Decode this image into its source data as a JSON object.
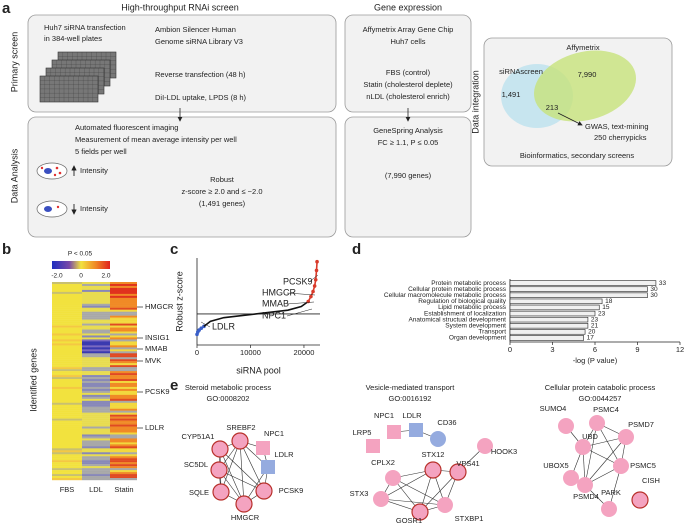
{
  "panel_a": {
    "label": "a",
    "col_titles": [
      "High-throughput RNAi screen",
      "Gene expression"
    ],
    "row_titles": [
      "Primary screen",
      "Data Analysis"
    ],
    "integration_title": "Data  integration",
    "screen": {
      "transfection": [
        "Huh7 siRNA transfection",
        "in 384-well plates"
      ],
      "library": [
        "Ambion Silencer Human",
        "Genome siRNA Library V3"
      ],
      "steps": [
        "Reverse transfection (48 h)",
        "DiI-LDL uptake, LPDS (8 h)"
      ]
    },
    "expression": {
      "chip": [
        "Affymetrix Array Gene Chip",
        "Huh7 cells"
      ],
      "conditions": [
        "FBS (control)",
        "Statin (cholesterol deplete)",
        "nLDL (cholesterol enrich)"
      ]
    },
    "screen_analysis": {
      "imaging": [
        "Automated fluorescent imaging",
        "Measurement of mean average intensity per well",
        "5 fields per well"
      ],
      "intensity": [
        "Intensity",
        "Intensity"
      ],
      "criteria": [
        "Robust",
        "z-score ≥ 2.0  and ≤ −2.0",
        "(1,491 genes)"
      ]
    },
    "expression_analysis": [
      "GeneSpring Analysis",
      "FC ≥ 1.1, P ≤ 0.05",
      "(7,990 genes)"
    ],
    "venn": {
      "sets": [
        "siRNAscreen",
        "Affymetrix"
      ],
      "counts": [
        "1,491",
        "7,990",
        "213"
      ],
      "follow_up": [
        "GWAS, text-mining",
        "250 cherrypicks"
      ],
      "footer": "Bioinformatics, secondary screens"
    }
  },
  "panel_b": {
    "label": "b",
    "colorbar_title": "P < 0.05",
    "colorbar_ticks": [
      "-2.0",
      "0",
      "2.0"
    ],
    "columns": [
      "FBS",
      "LDL",
      "Statin"
    ],
    "genes": [
      "HMGCR",
      "INSIG1",
      "MMAB",
      "MVK",
      "PCSK9",
      "LDLR"
    ],
    "y_label": "Identified genes"
  },
  "panel_c": {
    "label": "c",
    "chart_data": {
      "type": "scatter",
      "x_label": "siRNA pool",
      "y_label": "Robust z-score",
      "xlim": [
        0,
        23000
      ],
      "ylim": [
        -5,
        9
      ],
      "xticks": [
        0,
        10000,
        20000
      ],
      "series": [
        {
          "color": "#3a5fc8",
          "x": [
            0,
            150,
            400,
            800,
            1300
          ],
          "values": [
            -3.3,
            -2.9,
            -2.6,
            -2.3,
            -2.0
          ]
        },
        {
          "color": "#111111",
          "x": [
            1300,
            2500,
            5000,
            8000,
            11000,
            14000,
            17000,
            19500,
            20800
          ],
          "values": [
            -2.0,
            -1.2,
            -0.6,
            -0.3,
            0,
            0.3,
            0.6,
            1.2,
            2.0
          ]
        },
        {
          "color": "#d93a2a",
          "x": [
            20800,
            21300,
            21700,
            22000,
            22200,
            22350,
            22450
          ],
          "values": [
            2.0,
            2.8,
            3.6,
            4.5,
            5.5,
            7,
            8.4
          ]
        }
      ],
      "annotations": [
        {
          "text": "PCSK9",
          "color": "#111111"
        },
        {
          "text": "HMGCR",
          "color": "#111111"
        },
        {
          "text": "MMAB",
          "color": "#d93a2a"
        },
        {
          "text": "NPC1",
          "color": "#111111"
        },
        {
          "text": "LDLR",
          "color": "#111111"
        }
      ]
    }
  },
  "panel_d": {
    "label": "d",
    "chart_data": {
      "type": "bar",
      "orientation": "horizontal",
      "categories": [
        "Protein metabolic process",
        "Cellular protein metabolic process",
        "Cellular macromolecule metabolic process",
        "Regulation of biological quality",
        "Lipid metabolic process",
        "Establishment of localization",
        "Anatomical structual development",
        "System development",
        "Transport",
        "Organ development"
      ],
      "values": [
        10.3,
        9.7,
        9.7,
        6.5,
        6.3,
        6.0,
        5.5,
        5.5,
        5.3,
        5.2
      ],
      "gene_counts": [
        33,
        30,
        30,
        18,
        15,
        23,
        23,
        21,
        20,
        17
      ],
      "color": "#f0f0f0",
      "x_label": "-log (P value)",
      "xlim": [
        0,
        12
      ],
      "xticks": [
        0,
        3,
        6,
        9,
        12
      ]
    }
  },
  "panel_e": {
    "label": "e",
    "networks": [
      {
        "title": "Steroid metabolic process",
        "go": "GO:0008202",
        "nodes": [
          {
            "label": "SREBF2",
            "shape": "circle",
            "color": "#f4a3c0",
            "outline": true
          },
          {
            "label": "NPC1",
            "shape": "square",
            "color": "#f4a3c0",
            "outline": false
          },
          {
            "label": "CYP51A1",
            "shape": "circle",
            "color": "#f4a3c0",
            "outline": true
          },
          {
            "label": "LDLR",
            "shape": "square",
            "color": "#95abdf",
            "outline": false
          },
          {
            "label": "SC5DL",
            "shape": "circle",
            "color": "#f4a3c0",
            "outline": true
          },
          {
            "label": "SQLE",
            "shape": "circle",
            "color": "#f4a3c0",
            "outline": true
          },
          {
            "label": "HMGCR",
            "shape": "circle",
            "color": "#f4a3c0",
            "outline": true
          },
          {
            "label": "PCSK9",
            "shape": "circle",
            "color": "#f4a3c0",
            "outline": true
          }
        ]
      },
      {
        "title": "Vesicle-mediated transport",
        "go": "GO:0016192",
        "nodes": [
          {
            "label": "NPC1",
            "shape": "square",
            "color": "#f4a3c0",
            "outline": false
          },
          {
            "label": "LDLR",
            "shape": "square",
            "color": "#95abdf",
            "outline": false
          },
          {
            "label": "CD36",
            "shape": "circle",
            "color": "#95abdf",
            "outline": false
          },
          {
            "label": "LRP5",
            "shape": "square",
            "color": "#f4a3c0",
            "outline": false
          },
          {
            "label": "CPLX2",
            "shape": "circle",
            "color": "#f4a3c0",
            "outline": false
          },
          {
            "label": "STX12",
            "shape": "circle",
            "color": "#f4a3c0",
            "outline": true
          },
          {
            "label": "HOOK3",
            "shape": "circle",
            "color": "#f4a3c0",
            "outline": false
          },
          {
            "label": "VPS41",
            "shape": "circle",
            "color": "#f4a3c0",
            "outline": true
          },
          {
            "label": "STX3",
            "shape": "circle",
            "color": "#f4a3c0",
            "outline": false
          },
          {
            "label": "STXBP1",
            "shape": "circle",
            "color": "#f4a3c0",
            "outline": false
          },
          {
            "label": "GOSR1",
            "shape": "circle",
            "color": "#f4a3c0",
            "outline": true
          }
        ]
      },
      {
        "title": "Cellular protein catabolic process",
        "go": "GO:0044257",
        "nodes": [
          {
            "label": "SUMO4",
            "shape": "circle",
            "color": "#f4a3c0",
            "outline": false
          },
          {
            "label": "PSMC4",
            "shape": "circle",
            "color": "#f4a3c0",
            "outline": false
          },
          {
            "label": "UBD",
            "shape": "circle",
            "color": "#f4a3c0",
            "outline": false
          },
          {
            "label": "PSMD7",
            "shape": "circle",
            "color": "#f4a3c0",
            "outline": false
          },
          {
            "label": "UBOX5",
            "shape": "circle",
            "color": "#f4a3c0",
            "outline": false
          },
          {
            "label": "PSMC5",
            "shape": "circle",
            "color": "#f4a3c0",
            "outline": false
          },
          {
            "label": "PSMD4",
            "shape": "circle",
            "color": "#f4a3c0",
            "outline": false
          },
          {
            "label": "PARK",
            "shape": "circle",
            "color": "#f4a3c0",
            "outline": false
          },
          {
            "label": "CISH",
            "shape": "circle",
            "color": "#f4a3c0",
            "outline": true
          }
        ]
      }
    ]
  }
}
